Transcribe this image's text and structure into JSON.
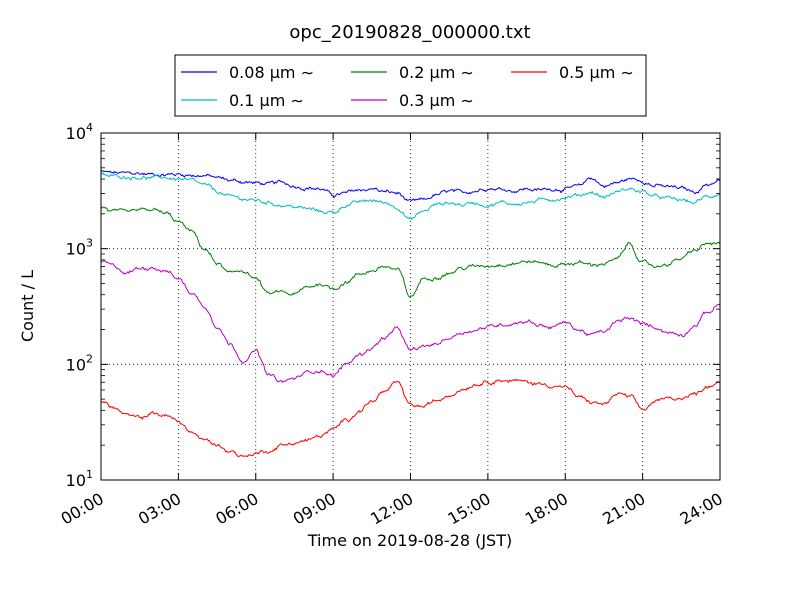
{
  "chart_data": {
    "type": "line",
    "title": "opc_20190828_000000.txt",
    "xlabel": "Time on 2019-08-28 (JST)",
    "ylabel": "Count / L",
    "x_range_hours": [
      0,
      24
    ],
    "x_ticks": [
      "00:00",
      "03:00",
      "06:00",
      "09:00",
      "12:00",
      "15:00",
      "18:00",
      "21:00",
      "24:00"
    ],
    "y_scale": "log",
    "ylim": [
      10,
      10000
    ],
    "y_ticks": [
      {
        "value": 10,
        "base": "10",
        "exp": "1"
      },
      {
        "value": 100,
        "base": "10",
        "exp": "2"
      },
      {
        "value": 1000,
        "base": "10",
        "exp": "3"
      },
      {
        "value": 10000,
        "base": "10",
        "exp": "4"
      }
    ],
    "grid": true,
    "legend_placement": "top-center",
    "legend_unit_suffix": " μm ∼",
    "x": [
      0,
      0.5,
      1,
      1.5,
      2,
      2.5,
      3,
      3.5,
      4,
      4.5,
      5,
      5.5,
      6,
      6.5,
      7,
      7.5,
      8,
      8.5,
      9,
      9.5,
      10,
      10.5,
      11,
      11.5,
      12,
      12.5,
      13,
      13.5,
      14,
      14.5,
      15,
      15.5,
      16,
      16.5,
      17,
      17.5,
      18,
      18.5,
      19,
      19.5,
      20,
      20.5,
      21,
      21.5,
      22,
      22.5,
      23,
      23.5,
      24
    ],
    "series": [
      {
        "name": "0.08",
        "color": "#0000ff",
        "values": [
          4600,
          4500,
          4450,
          4450,
          4400,
          4400,
          4400,
          4350,
          4300,
          4100,
          3900,
          3800,
          3700,
          3600,
          3700,
          3500,
          3400,
          3300,
          2900,
          3000,
          3200,
          3300,
          3100,
          3000,
          2500,
          2600,
          2900,
          3100,
          3000,
          3200,
          3400,
          3300,
          3200,
          3300,
          3200,
          3300,
          3300,
          3400,
          4100,
          3500,
          3700,
          4000,
          3900,
          3500,
          3400,
          3300,
          3100,
          3600,
          3900
        ]
      },
      {
        "name": "0.1",
        "color": "#00bfbf",
        "values": [
          4300,
          4200,
          4200,
          4200,
          4100,
          4100,
          4000,
          3800,
          3500,
          3100,
          2800,
          2700,
          2600,
          2500,
          2400,
          2300,
          2200,
          2100,
          2050,
          2400,
          2500,
          2600,
          2500,
          2300,
          1800,
          2100,
          2400,
          2500,
          2400,
          2500,
          2400,
          2500,
          2450,
          2500,
          2600,
          2700,
          2800,
          2900,
          3100,
          2800,
          3100,
          3300,
          3100,
          2800,
          2700,
          2600,
          2500,
          2800,
          3000
        ]
      },
      {
        "name": "0.2",
        "color": "#008000",
        "values": [
          2300,
          2100,
          2000,
          2100,
          2150,
          2000,
          1700,
          1400,
          1000,
          750,
          600,
          650,
          550,
          400,
          420,
          400,
          460,
          500,
          450,
          520,
          600,
          650,
          700,
          650,
          380,
          550,
          580,
          620,
          680,
          700,
          720,
          740,
          760,
          780,
          760,
          720,
          740,
          760,
          720,
          750,
          800,
          1100,
          750,
          700,
          750,
          820,
          950,
          1100,
          1100
        ]
      },
      {
        "name": "0.3",
        "color": "#bf00bf",
        "values": [
          780,
          700,
          620,
          680,
          700,
          650,
          550,
          420,
          320,
          220,
          150,
          110,
          130,
          80,
          70,
          75,
          85,
          90,
          80,
          100,
          120,
          140,
          170,
          200,
          130,
          140,
          150,
          170,
          190,
          200,
          210,
          220,
          230,
          240,
          220,
          210,
          230,
          200,
          180,
          190,
          230,
          250,
          220,
          210,
          190,
          180,
          220,
          280,
          330
        ]
      },
      {
        "name": "0.5",
        "color": "#ff0000",
        "values": [
          48,
          42,
          36,
          34,
          38,
          36,
          32,
          26,
          22,
          20,
          18,
          16,
          17,
          18,
          20,
          21,
          22,
          24,
          27,
          33,
          40,
          48,
          58,
          68,
          44,
          43,
          48,
          55,
          62,
          68,
          72,
          74,
          72,
          70,
          68,
          66,
          64,
          52,
          47,
          45,
          55,
          52,
          40,
          48,
          50,
          52,
          55,
          65,
          72
        ]
      }
    ]
  }
}
